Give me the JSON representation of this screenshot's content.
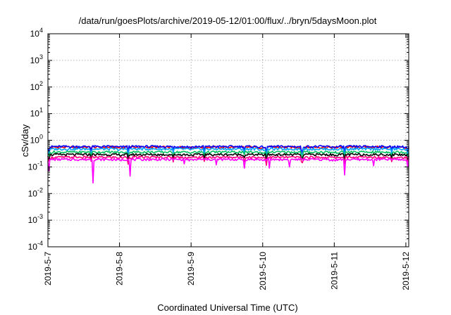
{
  "chart_data": {
    "type": "line",
    "title": "/data/run/goesPlots/archive/2019-05-12/01:00/flux/../bryn/5daysMoon.plot",
    "xlabel": "Coordinated Universal Time (UTC)",
    "ylabel": "cSv/day",
    "yscale": "log",
    "ylim": [
      0.0001,
      10000
    ],
    "xlim": [
      "2019-05-07",
      "2019-05-12 01:00"
    ],
    "grid": true,
    "y_ticks": [
      {
        "base": "10",
        "exp": "-4",
        "value": 0.0001
      },
      {
        "base": "10",
        "exp": "-3",
        "value": 0.001
      },
      {
        "base": "10",
        "exp": "-2",
        "value": 0.01
      },
      {
        "base": "10",
        "exp": "-1",
        "value": 0.1
      },
      {
        "base": "10",
        "exp": "0",
        "value": 1
      },
      {
        "base": "10",
        "exp": "1",
        "value": 10
      },
      {
        "base": "10",
        "exp": "2",
        "value": 100
      },
      {
        "base": "10",
        "exp": "3",
        "value": 1000
      },
      {
        "base": "10",
        "exp": "4",
        "value": 10000
      }
    ],
    "x_ticks": [
      "2019-5-7",
      "2019-5-8",
      "2019-5-9",
      "2019-5-10",
      "2019-5-11",
      "2019-5-12"
    ],
    "x_tick_days": [
      0,
      1,
      2,
      3,
      4,
      5
    ],
    "x_range_days": [
      0,
      5.04
    ],
    "series": [
      {
        "color": "#ff0000",
        "base": 0.55,
        "low": 0.32,
        "dips": [
          [
            0.02,
            0.7
          ],
          [
            0.6,
            0.75
          ],
          [
            1.12,
            0.6
          ],
          [
            1.75,
            0.7
          ],
          [
            2.18,
            0.65
          ],
          [
            2.75,
            0.75
          ],
          [
            3.05,
            0.55
          ],
          [
            3.55,
            0.65
          ],
          [
            4.15,
            0.55
          ],
          [
            4.8,
            0.7
          ],
          [
            5.02,
            0.55
          ]
        ]
      },
      {
        "color": "#0000ff",
        "base": 0.58,
        "low": 0.34,
        "dips": [
          [
            0.02,
            0.7
          ],
          [
            0.6,
            0.75
          ],
          [
            1.12,
            0.6
          ],
          [
            1.75,
            0.7
          ],
          [
            2.18,
            0.65
          ],
          [
            2.75,
            0.75
          ],
          [
            3.05,
            0.55
          ],
          [
            3.55,
            0.65
          ],
          [
            4.15,
            0.55
          ],
          [
            4.8,
            0.7
          ],
          [
            5.02,
            0.55
          ]
        ]
      },
      {
        "color": "#00a0ff",
        "base": 0.47,
        "low": 0.28,
        "dips": [
          [
            0.02,
            0.7
          ],
          [
            0.6,
            0.75
          ],
          [
            1.12,
            0.6
          ],
          [
            1.75,
            0.7
          ],
          [
            2.18,
            0.65
          ],
          [
            2.75,
            0.75
          ],
          [
            3.05,
            0.55
          ],
          [
            3.55,
            0.65
          ],
          [
            4.15,
            0.55
          ],
          [
            4.8,
            0.7
          ],
          [
            5.02,
            0.55
          ]
        ]
      },
      {
        "color": "#00c060",
        "base": 0.36,
        "low": 0.24,
        "dips": [
          [
            0.02,
            0.7
          ],
          [
            0.6,
            0.75
          ],
          [
            1.12,
            0.6
          ],
          [
            1.75,
            0.7
          ],
          [
            2.18,
            0.65
          ],
          [
            2.75,
            0.75
          ],
          [
            3.05,
            0.55
          ],
          [
            3.55,
            0.65
          ],
          [
            4.15,
            0.55
          ],
          [
            4.8,
            0.7
          ],
          [
            5.02,
            0.55
          ]
        ]
      },
      {
        "color": "#000000",
        "base": 0.29,
        "low": 0.2,
        "dips": [
          [
            0.02,
            0.7
          ],
          [
            0.6,
            0.75
          ],
          [
            1.12,
            0.6
          ],
          [
            1.75,
            0.7
          ],
          [
            2.18,
            0.65
          ],
          [
            2.75,
            0.75
          ],
          [
            3.05,
            0.55
          ],
          [
            3.55,
            0.65
          ],
          [
            4.15,
            0.55
          ],
          [
            4.8,
            0.7
          ],
          [
            5.02,
            0.55
          ]
        ]
      },
      {
        "color": "#ff0080",
        "base": 0.23,
        "low": 0.16,
        "dips": [
          [
            0.02,
            0.7
          ],
          [
            0.6,
            0.75
          ],
          [
            1.12,
            0.6
          ],
          [
            1.75,
            0.7
          ],
          [
            2.18,
            0.65
          ],
          [
            2.75,
            0.75
          ],
          [
            3.05,
            0.55
          ],
          [
            3.55,
            0.65
          ],
          [
            4.15,
            0.55
          ],
          [
            4.8,
            0.7
          ],
          [
            5.02,
            0.55
          ]
        ]
      },
      {
        "color": "#ff00ff",
        "base": 0.19,
        "low": 0.11,
        "dips": [
          [
            0.02,
            0.07
          ],
          [
            0.63,
            0.025
          ],
          [
            1.15,
            0.045
          ],
          [
            1.9,
            0.13
          ],
          [
            2.35,
            0.12
          ],
          [
            2.75,
            0.09
          ],
          [
            3.1,
            0.09
          ],
          [
            3.38,
            0.1
          ],
          [
            4.14,
            0.05
          ],
          [
            4.55,
            0.11
          ],
          [
            5.03,
            0.1
          ]
        ]
      }
    ]
  }
}
